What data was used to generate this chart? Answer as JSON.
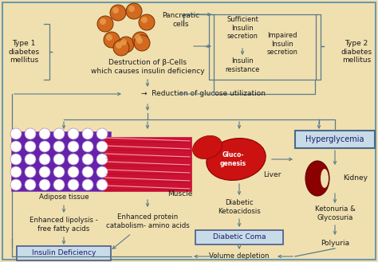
{
  "bg_color": "#f0e0b0",
  "border_color": "#6a9ab0",
  "box_color": "#c8dce8",
  "arrow_color": "#5a7a8a",
  "text_color": "#1a1a1a",
  "figsize": [
    4.74,
    3.29
  ],
  "dpi": 100,
  "xlim": [
    0,
    474
  ],
  "ylim": [
    0,
    329
  ]
}
